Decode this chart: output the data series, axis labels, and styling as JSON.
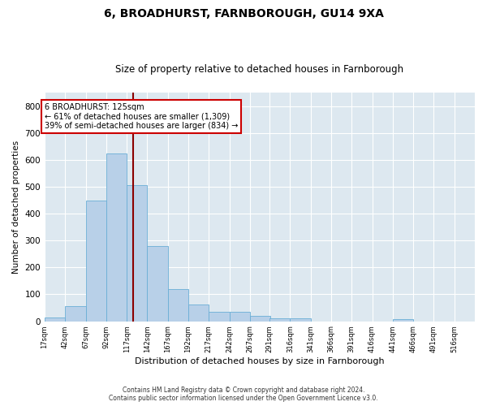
{
  "title": "6, BROADHURST, FARNBOROUGH, GU14 9XA",
  "subtitle": "Size of property relative to detached houses in Farnborough",
  "xlabel": "Distribution of detached houses by size in Farnborough",
  "ylabel": "Number of detached properties",
  "bin_labels": [
    "17sqm",
    "42sqm",
    "67sqm",
    "92sqm",
    "117sqm",
    "142sqm",
    "167sqm",
    "192sqm",
    "217sqm",
    "242sqm",
    "267sqm",
    "291sqm",
    "316sqm",
    "341sqm",
    "366sqm",
    "391sqm",
    "416sqm",
    "441sqm",
    "466sqm",
    "491sqm",
    "516sqm"
  ],
  "bin_left_edges": [
    17,
    42,
    67,
    92,
    117,
    142,
    167,
    192,
    217,
    242,
    267,
    291,
    316,
    341,
    366,
    391,
    416,
    441,
    466,
    491,
    516
  ],
  "bar_heights": [
    13,
    55,
    450,
    625,
    505,
    280,
    118,
    62,
    35,
    35,
    20,
    10,
    10,
    0,
    0,
    0,
    0,
    8,
    0,
    0,
    0
  ],
  "bar_color": "#b8d0e8",
  "bar_edge_color": "#6aaed6",
  "background_color": "#dde8f0",
  "grid_color": "#ffffff",
  "vline_x": 125,
  "vline_color": "#8b0000",
  "ylim": [
    0,
    850
  ],
  "yticks": [
    0,
    100,
    200,
    300,
    400,
    500,
    600,
    700,
    800
  ],
  "annotation_title": "6 BROADHURST: 125sqm",
  "annotation_line1": "← 61% of detached houses are smaller (1,309)",
  "annotation_line2": "39% of semi-detached houses are larger (834) →",
  "annotation_box_facecolor": "#ffffff",
  "annotation_box_edgecolor": "#cc0000",
  "fig_background": "#ffffff",
  "footer_line1": "Contains HM Land Registry data © Crown copyright and database right 2024.",
  "footer_line2": "Contains public sector information licensed under the Open Government Licence v3.0."
}
